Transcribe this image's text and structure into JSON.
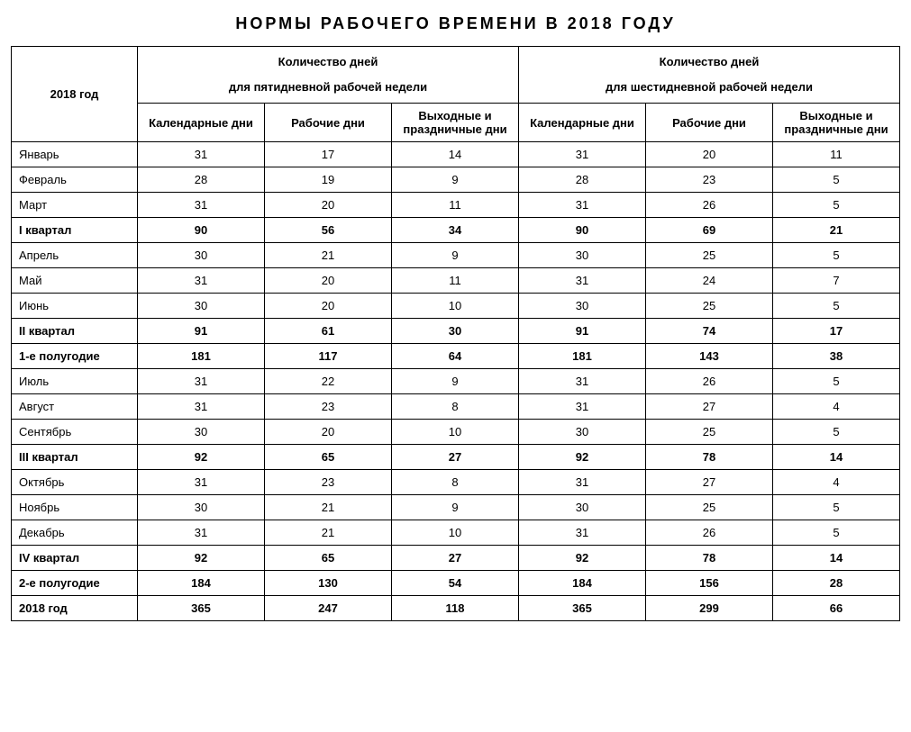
{
  "title": "НОРМЫ РАБОЧЕГО ВРЕМЕНИ В 2018 ГОДУ",
  "table": {
    "corner_header": "2018 год",
    "group5": {
      "line1": "Количество дней",
      "line2": "для пятидневной рабочей недели"
    },
    "group6": {
      "line1": "Количество дней",
      "line2": "для шестидневной рабочей недели"
    },
    "sub_headers": {
      "cal": "Календарные дни",
      "work": "Рабочие дни",
      "off": "Выходные и праздничные дни"
    },
    "rows": [
      {
        "label": "Январь",
        "bold": false,
        "d5": [
          31,
          17,
          14
        ],
        "d6": [
          31,
          20,
          11
        ]
      },
      {
        "label": "Февраль",
        "bold": false,
        "d5": [
          28,
          19,
          9
        ],
        "d6": [
          28,
          23,
          5
        ]
      },
      {
        "label": "Март",
        "bold": false,
        "d5": [
          31,
          20,
          11
        ],
        "d6": [
          31,
          26,
          5
        ]
      },
      {
        "label": "I квартал",
        "bold": true,
        "d5": [
          90,
          56,
          34
        ],
        "d6": [
          90,
          69,
          21
        ]
      },
      {
        "label": "Апрель",
        "bold": false,
        "d5": [
          30,
          21,
          9
        ],
        "d6": [
          30,
          25,
          5
        ]
      },
      {
        "label": "Май",
        "bold": false,
        "d5": [
          31,
          20,
          11
        ],
        "d6": [
          31,
          24,
          7
        ]
      },
      {
        "label": "Июнь",
        "bold": false,
        "d5": [
          30,
          20,
          10
        ],
        "d6": [
          30,
          25,
          5
        ]
      },
      {
        "label": "II квартал",
        "bold": true,
        "d5": [
          91,
          61,
          30
        ],
        "d6": [
          91,
          74,
          17
        ]
      },
      {
        "label": "1-е полугодие",
        "bold": true,
        "d5": [
          181,
          117,
          64
        ],
        "d6": [
          181,
          143,
          38
        ]
      },
      {
        "label": "Июль",
        "bold": false,
        "d5": [
          31,
          22,
          9
        ],
        "d6": [
          31,
          26,
          5
        ]
      },
      {
        "label": "Август",
        "bold": false,
        "d5": [
          31,
          23,
          8
        ],
        "d6": [
          31,
          27,
          4
        ]
      },
      {
        "label": "Сентябрь",
        "bold": false,
        "d5": [
          30,
          20,
          10
        ],
        "d6": [
          30,
          25,
          5
        ]
      },
      {
        "label": "III квартал",
        "bold": true,
        "d5": [
          92,
          65,
          27
        ],
        "d6": [
          92,
          78,
          14
        ]
      },
      {
        "label": "Октябрь",
        "bold": false,
        "d5": [
          31,
          23,
          8
        ],
        "d6": [
          31,
          27,
          4
        ]
      },
      {
        "label": "Ноябрь",
        "bold": false,
        "d5": [
          30,
          21,
          9
        ],
        "d6": [
          30,
          25,
          5
        ]
      },
      {
        "label": "Декабрь",
        "bold": false,
        "d5": [
          31,
          21,
          10
        ],
        "d6": [
          31,
          26,
          5
        ]
      },
      {
        "label": "IV квартал",
        "bold": true,
        "d5": [
          92,
          65,
          27
        ],
        "d6": [
          92,
          78,
          14
        ]
      },
      {
        "label": "2-е полугодие",
        "bold": true,
        "d5": [
          184,
          130,
          54
        ],
        "d6": [
          184,
          156,
          28
        ]
      },
      {
        "label": "2018 год",
        "bold": true,
        "d5": [
          365,
          247,
          118
        ],
        "d6": [
          365,
          299,
          66
        ]
      }
    ]
  }
}
